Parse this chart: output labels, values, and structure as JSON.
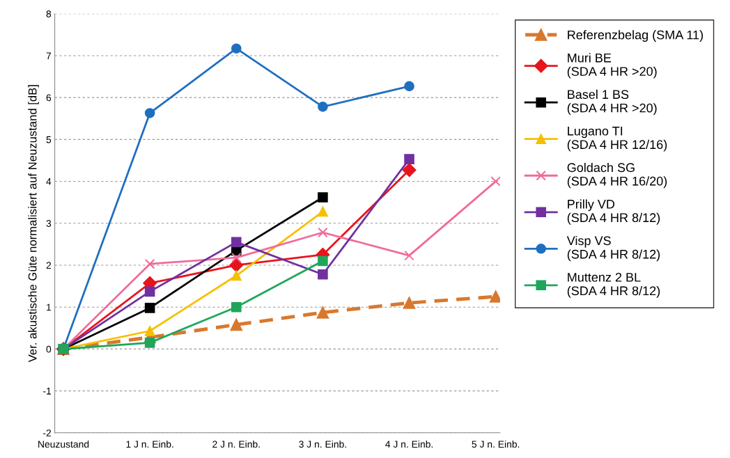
{
  "chart_data": {
    "type": "line",
    "ylabel": "Ver. akustische Güte normalisiert auf Neuzustand [dB]",
    "categories": [
      "Neuzustand",
      "1 J n. Einb.",
      "2 J n. Einb.",
      "3 J n. Einb.",
      "4 J n. Einb.",
      "5 J n. Einb."
    ],
    "ylim": [
      -2,
      8
    ],
    "yticks": [
      -2,
      -1,
      0,
      1,
      2,
      3,
      4,
      5,
      6,
      7,
      8
    ],
    "grid": "y",
    "legend": "right",
    "series": [
      {
        "name": "Referenzbelag (SMA 11)",
        "color": "#d9782d",
        "marker": "triangle",
        "line_style": "dashed",
        "values": [
          0,
          0.28,
          0.58,
          0.87,
          1.1,
          1.25
        ]
      },
      {
        "name": "Muri BE\n(SDA 4 HR >20)",
        "color": "#e8141b",
        "marker": "diamond",
        "line_style": "solid",
        "values": [
          0,
          1.57,
          2.0,
          2.25,
          4.27,
          null
        ]
      },
      {
        "name": "Basel 1 BS\n(SDA 4 HR >20)",
        "color": "#000000",
        "marker": "square",
        "line_style": "solid",
        "values": [
          0,
          0.98,
          2.35,
          3.62,
          null,
          null
        ]
      },
      {
        "name": "Lugano TI\n(SDA 4 HR 12/16)",
        "color": "#f5c000",
        "marker": "triangle",
        "line_style": "solid",
        "values": [
          0,
          0.43,
          1.75,
          3.28,
          null,
          null
        ]
      },
      {
        "name": "Goldach SG\n(SDA 4 HR 16/20)",
        "color": "#f06b9a",
        "marker": "cross",
        "line_style": "solid",
        "values": [
          0,
          2.03,
          2.18,
          2.78,
          2.23,
          4.0
        ]
      },
      {
        "name": "Prilly VD\n(SDA 4 HR 8/12)",
        "color": "#7030a0",
        "marker": "square",
        "line_style": "solid",
        "values": [
          0,
          1.37,
          2.55,
          1.78,
          4.53,
          null
        ]
      },
      {
        "name": "Visp VS\n(SDA 4 HR 8/12)",
        "color": "#1f6fc0",
        "marker": "circle",
        "line_style": "solid",
        "values": [
          0,
          5.63,
          7.17,
          5.78,
          6.27,
          null
        ]
      },
      {
        "name": "Muttenz 2 BL\n(SDA 4 HR 8/12)",
        "color": "#1fa65a",
        "marker": "square",
        "line_style": "solid",
        "values": [
          0,
          0.15,
          1.0,
          2.1,
          null,
          null
        ]
      }
    ]
  }
}
